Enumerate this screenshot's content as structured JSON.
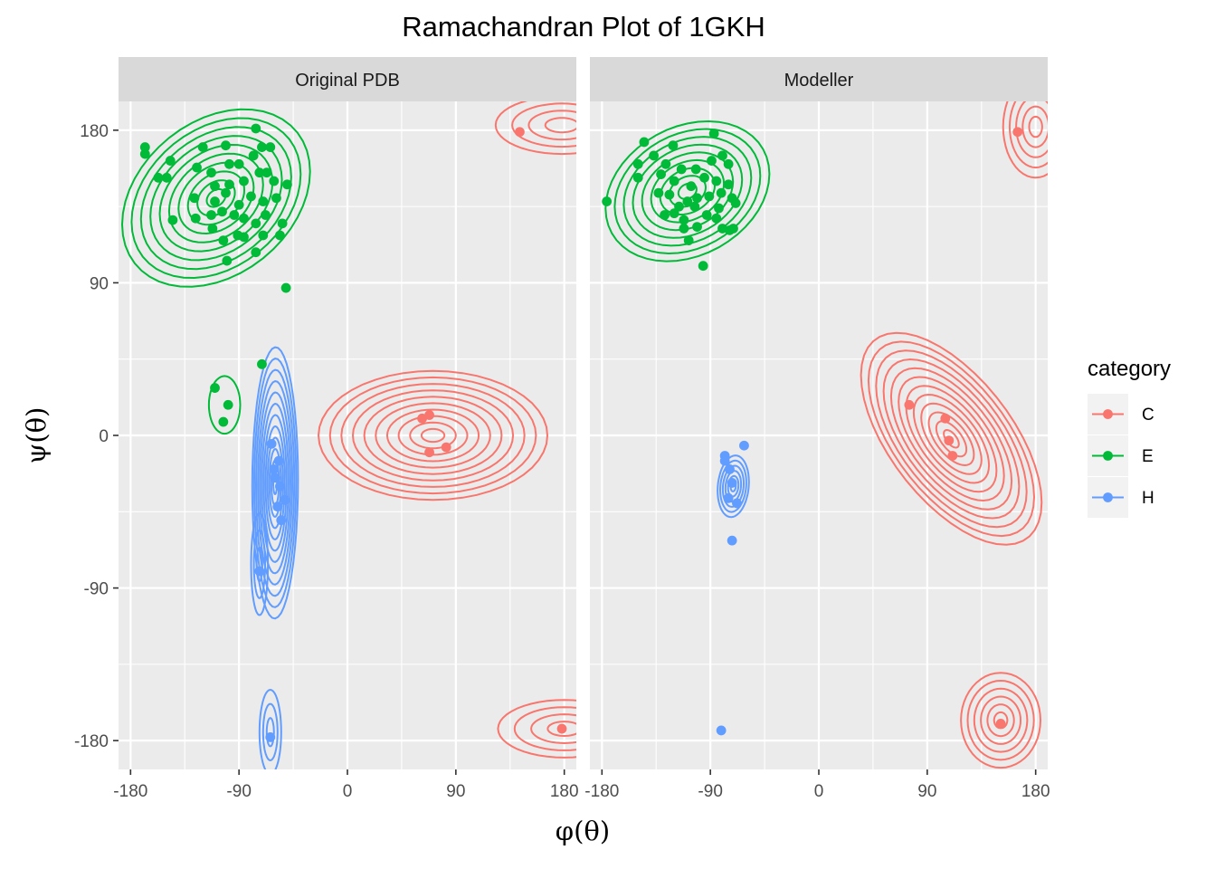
{
  "chart_data": {
    "type": "scatter",
    "title": "Ramachandran Plot of 1GKH",
    "xlabel": "φ(θ)",
    "ylabel": "ψ(θ)",
    "xlim": [
      -190,
      190
    ],
    "ylim": [
      -197,
      197
    ],
    "x_ticks": [
      -180,
      -90,
      0,
      90,
      180
    ],
    "y_ticks": [
      -180,
      -90,
      0,
      90,
      180
    ],
    "x_tick_labels": [
      "-180",
      "-90",
      "0",
      "90",
      "180"
    ],
    "y_tick_labels": [
      "-180",
      "-90",
      "0",
      "90",
      "180"
    ],
    "grid": true,
    "legend": {
      "title": "category",
      "position": "right",
      "entries": [
        {
          "label": "C",
          "color": "#F8766D"
        },
        {
          "label": "E",
          "color": "#00BA38"
        },
        {
          "label": "H",
          "color": "#619CFF"
        }
      ]
    },
    "panels": [
      {
        "label": "Original PDB",
        "points": {
          "C": [
            [
              143,
              179
            ],
            [
              178,
              -173
            ],
            [
              68,
              12
            ],
            [
              62,
              10
            ],
            [
              68,
              -10
            ],
            [
              82,
              -7
            ]
          ],
          "E": [
            [
              -168,
              170
            ],
            [
              -168,
              166
            ],
            [
              -147,
              162
            ],
            [
              -120,
              170
            ],
            [
              -101,
              171
            ],
            [
              -76,
              181
            ],
            [
              -157,
              152
            ],
            [
              -150,
              152
            ],
            [
              -125,
              158
            ],
            [
              -113,
              155
            ],
            [
              -98,
              160
            ],
            [
              -90,
              160
            ],
            [
              -78,
              165
            ],
            [
              -71,
              170
            ],
            [
              -64,
              170
            ],
            [
              -73,
              155
            ],
            [
              -110,
              147
            ],
            [
              -98,
              148
            ],
            [
              -86,
              150
            ],
            [
              -67,
              155
            ],
            [
              -61,
              150
            ],
            [
              -50,
              148
            ],
            [
              -127,
              140
            ],
            [
              -110,
              138
            ],
            [
              -101,
              143
            ],
            [
              -90,
              136
            ],
            [
              -80,
              141
            ],
            [
              -70,
              138
            ],
            [
              -59,
              140
            ],
            [
              -54,
              125
            ],
            [
              -145,
              127
            ],
            [
              -126,
              128
            ],
            [
              -113,
              130
            ],
            [
              -104,
              132
            ],
            [
              -94,
              130
            ],
            [
              -86,
              128
            ],
            [
              -76,
              125
            ],
            [
              -68,
              130
            ],
            [
              -56,
              118
            ],
            [
              -112,
              122
            ],
            [
              -103,
              115
            ],
            [
              -91,
              118
            ],
            [
              -86,
              117
            ],
            [
              -70,
              118
            ],
            [
              -100,
              103
            ],
            [
              -76,
              108
            ],
            [
              -51,
              87
            ],
            [
              -71,
              42
            ],
            [
              -110,
              28
            ],
            [
              -99,
              18
            ],
            [
              -103,
              8
            ]
          ],
          "H": [
            [
              -63,
              -5
            ],
            [
              -57,
              -15
            ],
            [
              -60,
              -25
            ],
            [
              -56,
              -30
            ],
            [
              -52,
              -38
            ],
            [
              -58,
              -42
            ],
            [
              -61,
              -20
            ],
            [
              -55,
              -50
            ],
            [
              -73,
              -80
            ],
            [
              -64,
              -178
            ]
          ]
        }
      },
      {
        "label": "Modeller",
        "points": {
          "C": [
            [
              165,
              179
            ],
            [
              151,
              -170
            ],
            [
              75,
              18
            ],
            [
              105,
              10
            ],
            [
              108,
              -3
            ],
            [
              111,
              -12
            ]
          ],
          "E": [
            [
              -176,
              138
            ],
            [
              -145,
              173
            ],
            [
              -121,
              171
            ],
            [
              -87,
              178
            ],
            [
              -150,
              160
            ],
            [
              -137,
              165
            ],
            [
              -127,
              160
            ],
            [
              -114,
              157
            ],
            [
              -102,
              157
            ],
            [
              -89,
              162
            ],
            [
              -80,
              165
            ],
            [
              -75,
              160
            ],
            [
              -150,
              152
            ],
            [
              -131,
              154
            ],
            [
              -120,
              150
            ],
            [
              -106,
              147
            ],
            [
              -95,
              152
            ],
            [
              -85,
              150
            ],
            [
              -75,
              148
            ],
            [
              -133,
              143
            ],
            [
              -124,
              142
            ],
            [
              -116,
              135
            ],
            [
              -109,
              138
            ],
            [
              -101,
              140
            ],
            [
              -91,
              141
            ],
            [
              -81,
              143
            ],
            [
              -72,
              140
            ],
            [
              -128,
              130
            ],
            [
              -120,
              131
            ],
            [
              -112,
              127
            ],
            [
              -103,
              135
            ],
            [
              -93,
              130
            ],
            [
              -83,
              134
            ],
            [
              -69,
              137
            ],
            [
              -112,
              122
            ],
            [
              -101,
              123
            ],
            [
              -85,
              128
            ],
            [
              -74,
              121
            ],
            [
              -71,
              122
            ],
            [
              -108,
              115
            ],
            [
              -80,
              122
            ],
            [
              -96,
              100
            ]
          ],
          "H": [
            [
              -78,
              -12
            ],
            [
              -78,
              -15
            ],
            [
              -62,
              -6
            ],
            [
              -74,
              -20
            ],
            [
              -72,
              -28
            ],
            [
              -75,
              -37
            ],
            [
              -68,
              -40
            ],
            [
              -72,
              -62
            ],
            [
              -81,
              -174
            ]
          ]
        }
      }
    ]
  }
}
